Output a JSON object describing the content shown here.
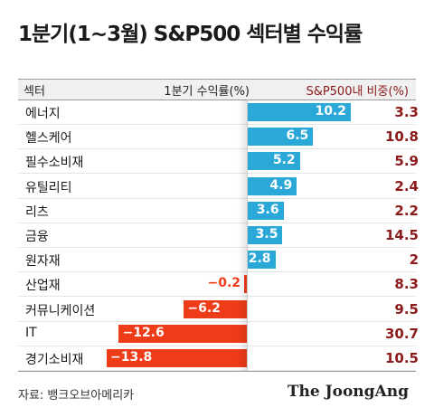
{
  "title": "1분기(1~3월) S&P500 섹터별 수익률",
  "header": {
    "sector": "섹터",
    "return": "1분기 수익률(%)",
    "weight": "S&P500내 비중(%)"
  },
  "source": "자료: 뱅크오브아메리카",
  "brand": "The JoongAng",
  "colors": {
    "positive": "#2aa8d8",
    "negative": "#ee3b18",
    "weight": "#8b1a1a"
  },
  "chart_data": {
    "type": "bar",
    "orientation": "horizontal",
    "categories": [
      "에너지",
      "헬스케어",
      "필수소비재",
      "유틸리티",
      "리츠",
      "금융",
      "원자재",
      "산업재",
      "커뮤니케이션",
      "IT",
      "경기소비재"
    ],
    "series": [
      {
        "name": "1분기 수익률(%)",
        "values": [
          10.2,
          6.5,
          5.2,
          4.9,
          3.6,
          3.5,
          2.8,
          -0.2,
          -6.2,
          -12.6,
          -13.8
        ]
      }
    ],
    "value_labels": [
      "10.2",
      "6.5",
      "5.2",
      "4.9",
      "3.6",
      "3.5",
      "2.8",
      "−0.2",
      "−6.2",
      "−12.6",
      "−13.8"
    ],
    "weights": [
      "3.3",
      "10.8",
      "5.9",
      "2.4",
      "2.2",
      "14.5",
      "2",
      "8.3",
      "9.5",
      "30.7",
      "10.5"
    ],
    "weight_label": "S&P500내 비중(%)"
  }
}
